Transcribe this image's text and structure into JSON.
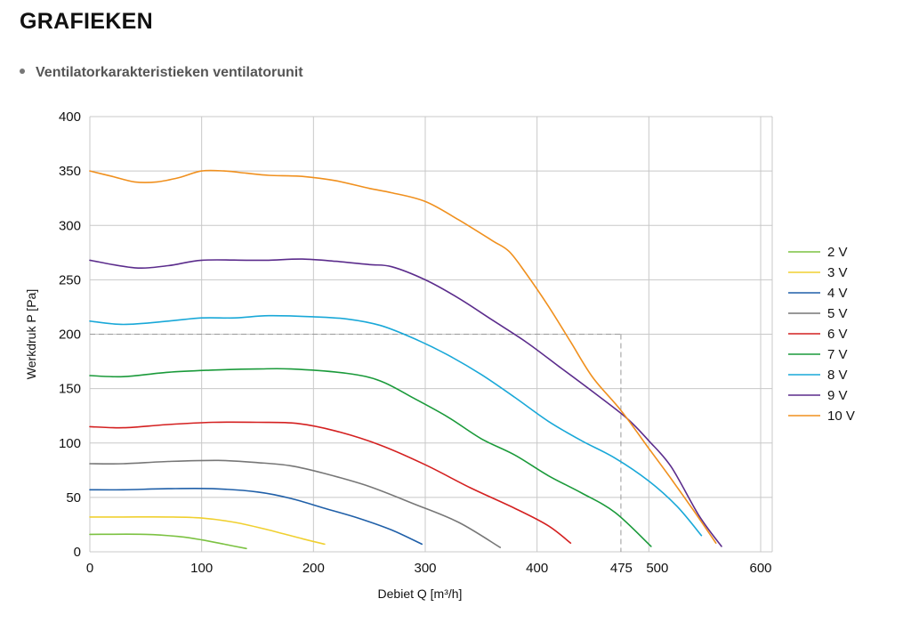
{
  "header": {
    "title": "GRAFIEKEN",
    "subtitle": "Ventilatorkarakteristieken ventilatorunit"
  },
  "chart_data": {
    "type": "line",
    "title": "",
    "xlabel": "Debiet Q [m³/h]",
    "ylabel": "Werkdruk P [Pa]",
    "xlim": [
      0,
      610
    ],
    "ylim": [
      0,
      400
    ],
    "x_ticks": [
      0,
      100,
      200,
      300,
      400,
      475,
      500,
      600
    ],
    "y_ticks": [
      0,
      50,
      100,
      150,
      200,
      250,
      300,
      350,
      400
    ],
    "grid": true,
    "legend_position": "right",
    "operating_point": {
      "x": 475,
      "y": 200,
      "style": "dashed"
    },
    "series": [
      {
        "name": "2 V",
        "color": "#7cc242",
        "points": [
          [
            0,
            16
          ],
          [
            50,
            16
          ],
          [
            80,
            14
          ],
          [
            100,
            11
          ],
          [
            120,
            7
          ],
          [
            140,
            3
          ]
        ]
      },
      {
        "name": "3 V",
        "color": "#f0d030",
        "points": [
          [
            0,
            32
          ],
          [
            30,
            32
          ],
          [
            70,
            32
          ],
          [
            100,
            31
          ],
          [
            130,
            27
          ],
          [
            160,
            20
          ],
          [
            190,
            12
          ],
          [
            210,
            7
          ]
        ]
      },
      {
        "name": "4 V",
        "color": "#1f5fa8",
        "points": [
          [
            0,
            57
          ],
          [
            30,
            57
          ],
          [
            70,
            58
          ],
          [
            110,
            58
          ],
          [
            150,
            55
          ],
          [
            180,
            49
          ],
          [
            210,
            40
          ],
          [
            240,
            31
          ],
          [
            270,
            20
          ],
          [
            297,
            7
          ]
        ]
      },
      {
        "name": "5 V",
        "color": "#777777",
        "points": [
          [
            0,
            81
          ],
          [
            30,
            81
          ],
          [
            70,
            83
          ],
          [
            115,
            84
          ],
          [
            150,
            82
          ],
          [
            180,
            79
          ],
          [
            210,
            72
          ],
          [
            250,
            60
          ],
          [
            290,
            44
          ],
          [
            330,
            27
          ],
          [
            367,
            4
          ]
        ]
      },
      {
        "name": "6 V",
        "color": "#d42020",
        "points": [
          [
            0,
            115
          ],
          [
            30,
            114
          ],
          [
            70,
            117
          ],
          [
            110,
            119
          ],
          [
            150,
            119
          ],
          [
            185,
            118
          ],
          [
            220,
            111
          ],
          [
            260,
            98
          ],
          [
            300,
            80
          ],
          [
            340,
            59
          ],
          [
            380,
            40
          ],
          [
            410,
            24
          ],
          [
            430,
            8
          ]
        ]
      },
      {
        "name": "7 V",
        "color": "#1a9a3a",
        "points": [
          [
            0,
            162
          ],
          [
            30,
            161
          ],
          [
            70,
            165
          ],
          [
            110,
            167
          ],
          [
            150,
            168
          ],
          [
            180,
            168
          ],
          [
            230,
            164
          ],
          [
            260,
            157
          ],
          [
            290,
            141
          ],
          [
            320,
            124
          ],
          [
            350,
            104
          ],
          [
            380,
            89
          ],
          [
            410,
            70
          ],
          [
            440,
            54
          ],
          [
            470,
            36
          ],
          [
            502,
            5
          ]
        ]
      },
      {
        "name": "8 V",
        "color": "#19a8d8",
        "points": [
          [
            0,
            212
          ],
          [
            30,
            209
          ],
          [
            70,
            212
          ],
          [
            100,
            215
          ],
          [
            130,
            215
          ],
          [
            160,
            217
          ],
          [
            200,
            216
          ],
          [
            230,
            214
          ],
          [
            260,
            208
          ],
          [
            290,
            196
          ],
          [
            320,
            181
          ],
          [
            350,
            163
          ],
          [
            380,
            142
          ],
          [
            410,
            120
          ],
          [
            440,
            102
          ],
          [
            470,
            86
          ],
          [
            500,
            65
          ],
          [
            525,
            42
          ],
          [
            547,
            15
          ]
        ]
      },
      {
        "name": "9 V",
        "color": "#5b2c8c",
        "points": [
          [
            0,
            268
          ],
          [
            40,
            261
          ],
          [
            70,
            263
          ],
          [
            100,
            268
          ],
          [
            140,
            268
          ],
          [
            160,
            268
          ],
          [
            190,
            269
          ],
          [
            220,
            267
          ],
          [
            250,
            264
          ],
          [
            270,
            262
          ],
          [
            300,
            250
          ],
          [
            330,
            233
          ],
          [
            360,
            213
          ],
          [
            390,
            193
          ],
          [
            420,
            170
          ],
          [
            450,
            147
          ],
          [
            480,
            123
          ],
          [
            500,
            102
          ],
          [
            520,
            78
          ],
          [
            545,
            33
          ],
          [
            565,
            5
          ]
        ]
      },
      {
        "name": "10 V",
        "color": "#f0901e",
        "points": [
          [
            0,
            350
          ],
          [
            20,
            345
          ],
          [
            40,
            340
          ],
          [
            60,
            340
          ],
          [
            80,
            344
          ],
          [
            100,
            350
          ],
          [
            120,
            350
          ],
          [
            140,
            348
          ],
          [
            160,
            346
          ],
          [
            190,
            345
          ],
          [
            220,
            341
          ],
          [
            250,
            334
          ],
          [
            270,
            330
          ],
          [
            300,
            322
          ],
          [
            330,
            305
          ],
          [
            360,
            286
          ],
          [
            375,
            276
          ],
          [
            390,
            256
          ],
          [
            410,
            226
          ],
          [
            430,
            193
          ],
          [
            450,
            160
          ],
          [
            475,
            130
          ],
          [
            500,
            95
          ],
          [
            520,
            67
          ],
          [
            540,
            38
          ],
          [
            560,
            8
          ]
        ]
      }
    ]
  }
}
